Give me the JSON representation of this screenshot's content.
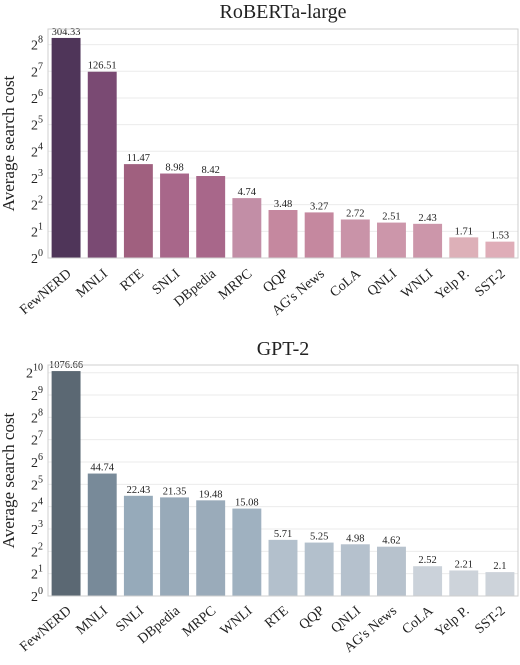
{
  "chart_data": [
    {
      "type": "bar",
      "title": "RoBERTa-large",
      "ylabel": "Average search cost",
      "yscale": "log2",
      "ylim": [
        1,
        384
      ],
      "yticks": [
        {
          "value": 1,
          "base": "2",
          "exp": "0"
        },
        {
          "value": 2,
          "base": "2",
          "exp": "1"
        },
        {
          "value": 4,
          "base": "2",
          "exp": "2"
        },
        {
          "value": 8,
          "base": "2",
          "exp": "3"
        },
        {
          "value": 16,
          "base": "2",
          "exp": "4"
        },
        {
          "value": 32,
          "base": "2",
          "exp": "5"
        },
        {
          "value": 64,
          "base": "2",
          "exp": "6"
        },
        {
          "value": 128,
          "base": "2",
          "exp": "7"
        },
        {
          "value": 256,
          "base": "2",
          "exp": "8"
        }
      ],
      "grid": true,
      "categories": [
        "FewNERD",
        "MNLI",
        "RTE",
        "SNLI",
        "DBpedia",
        "MRPC",
        "QQP",
        "AG's News",
        "CoLA",
        "QNLI",
        "WNLI",
        "Yelp P.",
        "SST-2"
      ],
      "values": [
        304.33,
        126.51,
        11.47,
        8.98,
        8.42,
        4.74,
        3.48,
        3.27,
        2.72,
        2.51,
        2.43,
        1.71,
        1.53
      ],
      "labels": [
        "304.33",
        "126.51",
        "11.47",
        "8.98",
        "8.42",
        "4.74",
        "3.48",
        "3.27",
        "2.72",
        "2.51",
        "2.43",
        "1.71",
        "1.53"
      ],
      "colors": [
        "#4f3559",
        "#7a4a73",
        "#a0607f",
        "#a8678a",
        "#a8678a",
        "#c28ea6",
        "#c5889f",
        "#c5889f",
        "#c993a8",
        "#cc96aa",
        "#cc96aa",
        "#ddb0b8",
        "#dfadb8"
      ]
    },
    {
      "type": "bar",
      "title": "GPT-2",
      "ylabel": "Average search cost",
      "yscale": "log2",
      "ylim": [
        1,
        1300
      ],
      "yticks": [
        {
          "value": 1,
          "base": "2",
          "exp": "0"
        },
        {
          "value": 2,
          "base": "2",
          "exp": "1"
        },
        {
          "value": 4,
          "base": "2",
          "exp": "2"
        },
        {
          "value": 8,
          "base": "2",
          "exp": "3"
        },
        {
          "value": 16,
          "base": "2",
          "exp": "4"
        },
        {
          "value": 32,
          "base": "2",
          "exp": "5"
        },
        {
          "value": 64,
          "base": "2",
          "exp": "6"
        },
        {
          "value": 128,
          "base": "2",
          "exp": "7"
        },
        {
          "value": 256,
          "base": "2",
          "exp": "8"
        },
        {
          "value": 512,
          "base": "2",
          "exp": "9"
        },
        {
          "value": 1024,
          "base": "2",
          "exp": "10"
        }
      ],
      "grid": true,
      "categories": [
        "FewNERD",
        "MNLI",
        "SNLI",
        "DBpedia",
        "MRPC",
        "WNLI",
        "RTE",
        "QQP",
        "QNLI",
        "AG's News",
        "CoLA",
        "Yelp P.",
        "SST-2"
      ],
      "values": [
        1076.66,
        44.74,
        22.43,
        21.35,
        19.48,
        15.08,
        5.71,
        5.25,
        4.98,
        4.62,
        2.52,
        2.21,
        2.1
      ],
      "labels": [
        "1076.66",
        "44.74",
        "22.43",
        "21.35",
        "19.48",
        "15.08",
        "5.71",
        "5.25",
        "4.98",
        "4.62",
        "2.52",
        "2.21",
        "2.1"
      ],
      "colors": [
        "#5b6873",
        "#788a99",
        "#96aaba",
        "#98aab9",
        "#9aabba",
        "#9fb1c0",
        "#b3c0cc",
        "#b3c0cc",
        "#b5c1cd",
        "#b7c2cd",
        "#cbd2da",
        "#cdd3da",
        "#cdd3da"
      ]
    }
  ]
}
